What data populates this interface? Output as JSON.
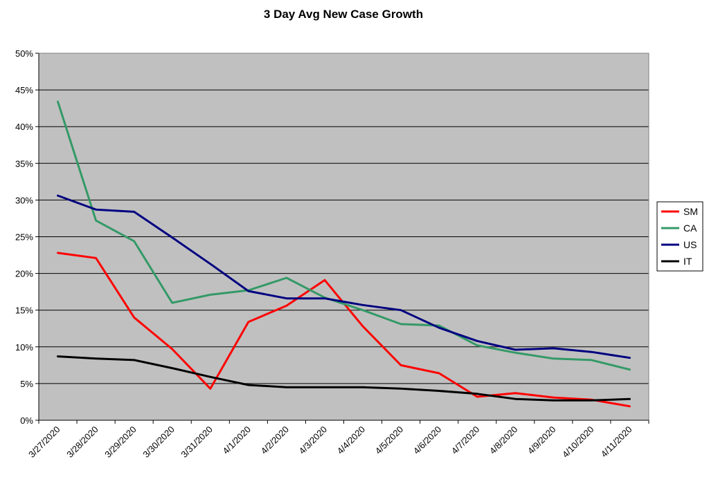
{
  "chart_data": {
    "type": "line",
    "title": "3 Day Avg New Case Growth",
    "xlabel": "",
    "ylabel": "",
    "ylim": [
      0,
      50
    ],
    "y_ticks": [
      "0%",
      "5%",
      "10%",
      "15%",
      "20%",
      "25%",
      "30%",
      "35%",
      "40%",
      "45%",
      "50%"
    ],
    "grid": true,
    "legend_position": "right",
    "background_color": "#c0c0c0",
    "categories": [
      "3/27/2020",
      "3/28/2020",
      "3/29/2020",
      "3/30/2020",
      "3/31/2020",
      "4/1/2020",
      "4/2/2020",
      "4/3/2020",
      "4/4/2020",
      "4/5/2020",
      "4/6/2020",
      "4/7/2020",
      "4/8/2020",
      "4/9/2020",
      "4/10/2020",
      "4/11/2020"
    ],
    "series": [
      {
        "name": "SM",
        "color": "#ff0000",
        "values": [
          22.8,
          22.1,
          14.0,
          9.7,
          4.3,
          13.4,
          15.6,
          19.1,
          12.8,
          7.5,
          6.4,
          3.2,
          3.7,
          3.1,
          2.8,
          1.9
        ]
      },
      {
        "name": "CA",
        "color": "#339966",
        "values": [
          43.4,
          27.2,
          24.4,
          16.0,
          17.1,
          17.7,
          19.4,
          16.7,
          15.0,
          13.1,
          12.9,
          10.2,
          9.2,
          8.4,
          8.2,
          6.9
        ]
      },
      {
        "name": "US",
        "color": "#000080",
        "values": [
          30.6,
          28.7,
          28.4,
          24.9,
          21.3,
          17.6,
          16.6,
          16.6,
          15.7,
          15.0,
          12.6,
          10.8,
          9.6,
          9.8,
          9.3,
          8.5
        ]
      },
      {
        "name": "IT",
        "color": "#000000",
        "values": [
          8.7,
          8.4,
          8.2,
          7.1,
          5.9,
          4.8,
          4.5,
          4.5,
          4.5,
          4.3,
          4.0,
          3.6,
          2.9,
          2.7,
          2.7,
          2.9
        ]
      }
    ]
  }
}
